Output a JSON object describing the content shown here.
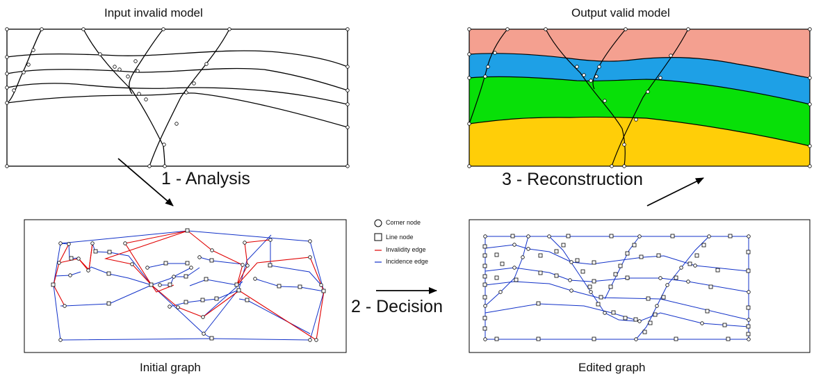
{
  "captions": {
    "input_model": "Input invalid model",
    "output_model": "Output valid model",
    "initial_graph": "Initial graph",
    "edited_graph": "Edited graph"
  },
  "steps": {
    "analysis": "1 - Analysis",
    "decision": "2 - Decision",
    "reconstruction": "3 - Reconstruction"
  },
  "legend": {
    "corner_node": "Corner node",
    "line_node": "Line node",
    "invalidity_edge": "Invalidity edge",
    "incidence_edge": "Incidence edge"
  },
  "colors": {
    "layer_top": "#f4a090",
    "layer_blue": "#1ea0e6",
    "layer_green": "#08e008",
    "layer_yellow": "#ffce08",
    "invalidity_edge": "#e00000",
    "incidence_edge": "#1030c8"
  }
}
